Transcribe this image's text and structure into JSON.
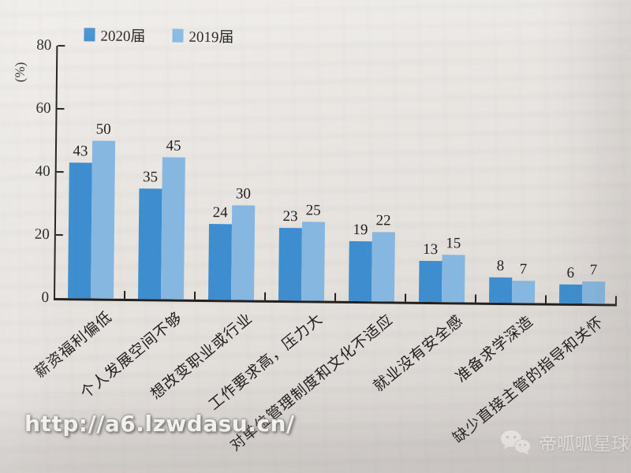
{
  "chart_data": {
    "type": "bar",
    "title": "",
    "categories": [
      "薪资福利偏低",
      "个人发展空间不够",
      "想改变职业或行业",
      "工作要求高，压力大",
      "对单位管理制度和文化不适应",
      "就业没有安全感",
      "准备求学深造",
      "缺少直接主管的指导和关怀"
    ],
    "series": [
      {
        "name": "2020届",
        "color": "#3e8ecf",
        "values": [
          43,
          35,
          24,
          23,
          19,
          13,
          8,
          6
        ]
      },
      {
        "name": "2019届",
        "color": "#85b7e1",
        "values": [
          50,
          45,
          30,
          25,
          22,
          15,
          7,
          7
        ]
      }
    ],
    "ylabel": "(%)",
    "xlabel": "",
    "ylim": [
      0,
      80
    ],
    "yticks": [
      0,
      20,
      40,
      60,
      80
    ],
    "grid": false,
    "legend_position": "top-left"
  },
  "watermark": {
    "url": "http://a6.lzwdasu.cn/",
    "brand": "帝呱呱星球"
  },
  "colors": {
    "axis": "#23211f",
    "paper": "#e5e1dd",
    "bar_2020": "#3e8ecf",
    "bar_2019": "#85b7e1"
  }
}
